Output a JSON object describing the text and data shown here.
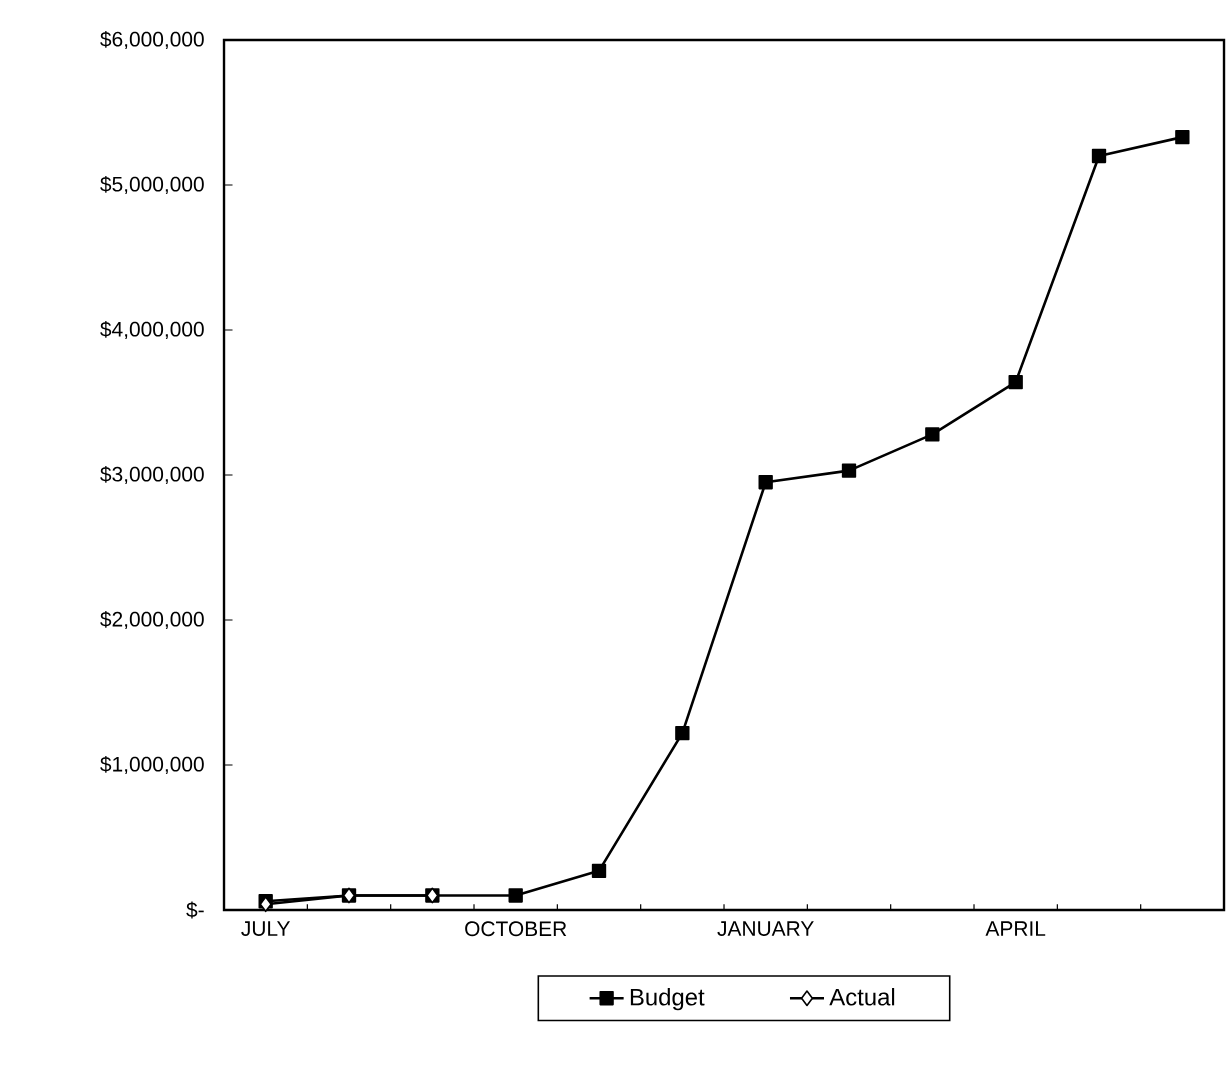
{
  "chart_data": {
    "type": "line",
    "categories": [
      "JULY",
      null,
      null,
      "OCTOBER",
      null,
      null,
      "JANUARY",
      null,
      null,
      "APRIL",
      null,
      null
    ],
    "series": [
      {
        "name": "Budget",
        "color": "#000000",
        "marker": "square",
        "values": [
          60000,
          100000,
          100000,
          100000,
          270000,
          1220000,
          2950000,
          3030000,
          3280000,
          3640000,
          5200000,
          5330000
        ]
      },
      {
        "name": "Actual",
        "color": "#000000",
        "marker": "diamond",
        "values": [
          40000,
          100000,
          100000,
          null,
          null,
          null,
          null,
          null,
          null,
          null,
          null,
          null
        ]
      }
    ],
    "ylim": [
      0,
      6000000
    ],
    "yticks": [
      {
        "value": 0,
        "label": "$-"
      },
      {
        "value": 1000000,
        "label": "$1,000,000"
      },
      {
        "value": 2000000,
        "label": "$2,000,000"
      },
      {
        "value": 3000000,
        "label": "$3,000,000"
      },
      {
        "value": 4000000,
        "label": "$4,000,000"
      },
      {
        "value": 5000000,
        "label": "$5,000,000"
      },
      {
        "value": 6000000,
        "label": "$6,000,000"
      }
    ],
    "grid": false,
    "legend": "bottom",
    "line_style": "solid"
  }
}
